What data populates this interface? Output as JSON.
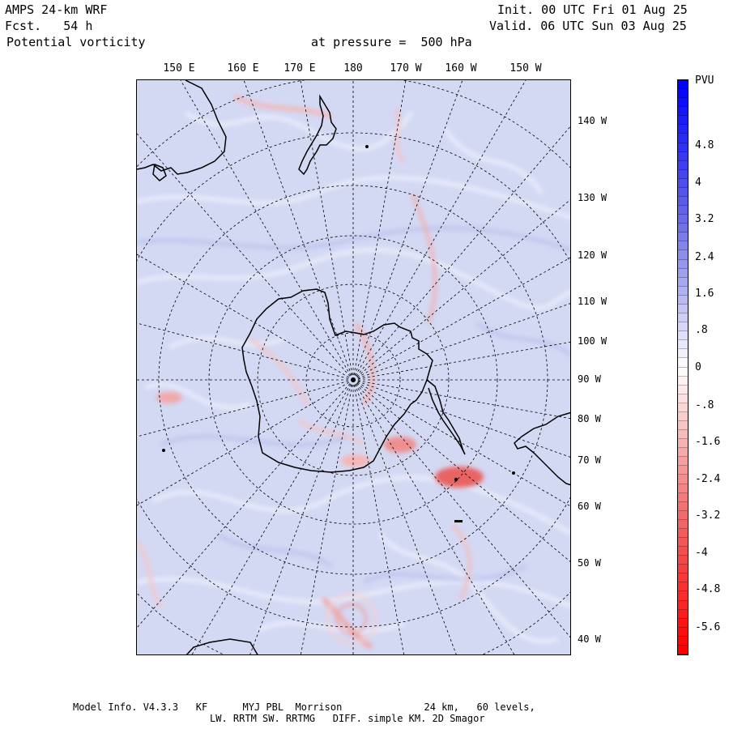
{
  "header": {
    "model": "AMPS 24-km WRF",
    "forecast": "Fcst.   54 h",
    "field": "Potential vorticity",
    "level": "at pressure =  500 hPa",
    "init": "Init. 00 UTC Fri 01 Aug 25",
    "valid": "Valid. 06 UTC Sun 03 Aug 25"
  },
  "longitude_labels_top": [
    "150 E",
    "160 E",
    "170 E",
    "180",
    "170 W",
    "160 W",
    "150 W"
  ],
  "longitude_labels_right": [
    "140 W",
    "130 W",
    "120 W",
    "110 W",
    "100 W",
    "90 W",
    "80 W",
    "70 W",
    "60 W",
    "50 W",
    "40 W"
  ],
  "colorbar": {
    "unit": "PVU",
    "tick_labels": [
      "4.8",
      "4",
      "3.2",
      "2.4",
      "1.6",
      ".8",
      "0",
      "-.8",
      "-1.6",
      "-2.4",
      "-3.2",
      "-4",
      "-4.8",
      "-5.6"
    ],
    "colors": {
      "max_positive": "#0000ff",
      "positive": "#6f6fe6",
      "near_zero": "#ffffff",
      "negative": "#f07070",
      "max_negative": "#ff0000",
      "background_field": "#d2d8f2"
    }
  },
  "footer": {
    "line1": "Model Info. V4.3.3   KF      MYJ PBL  Morrison              24 km,   60 levels,",
    "line2": "LW. RRTM SW. RRTMG   DIFF. simple KM. 2D Smagor"
  }
}
